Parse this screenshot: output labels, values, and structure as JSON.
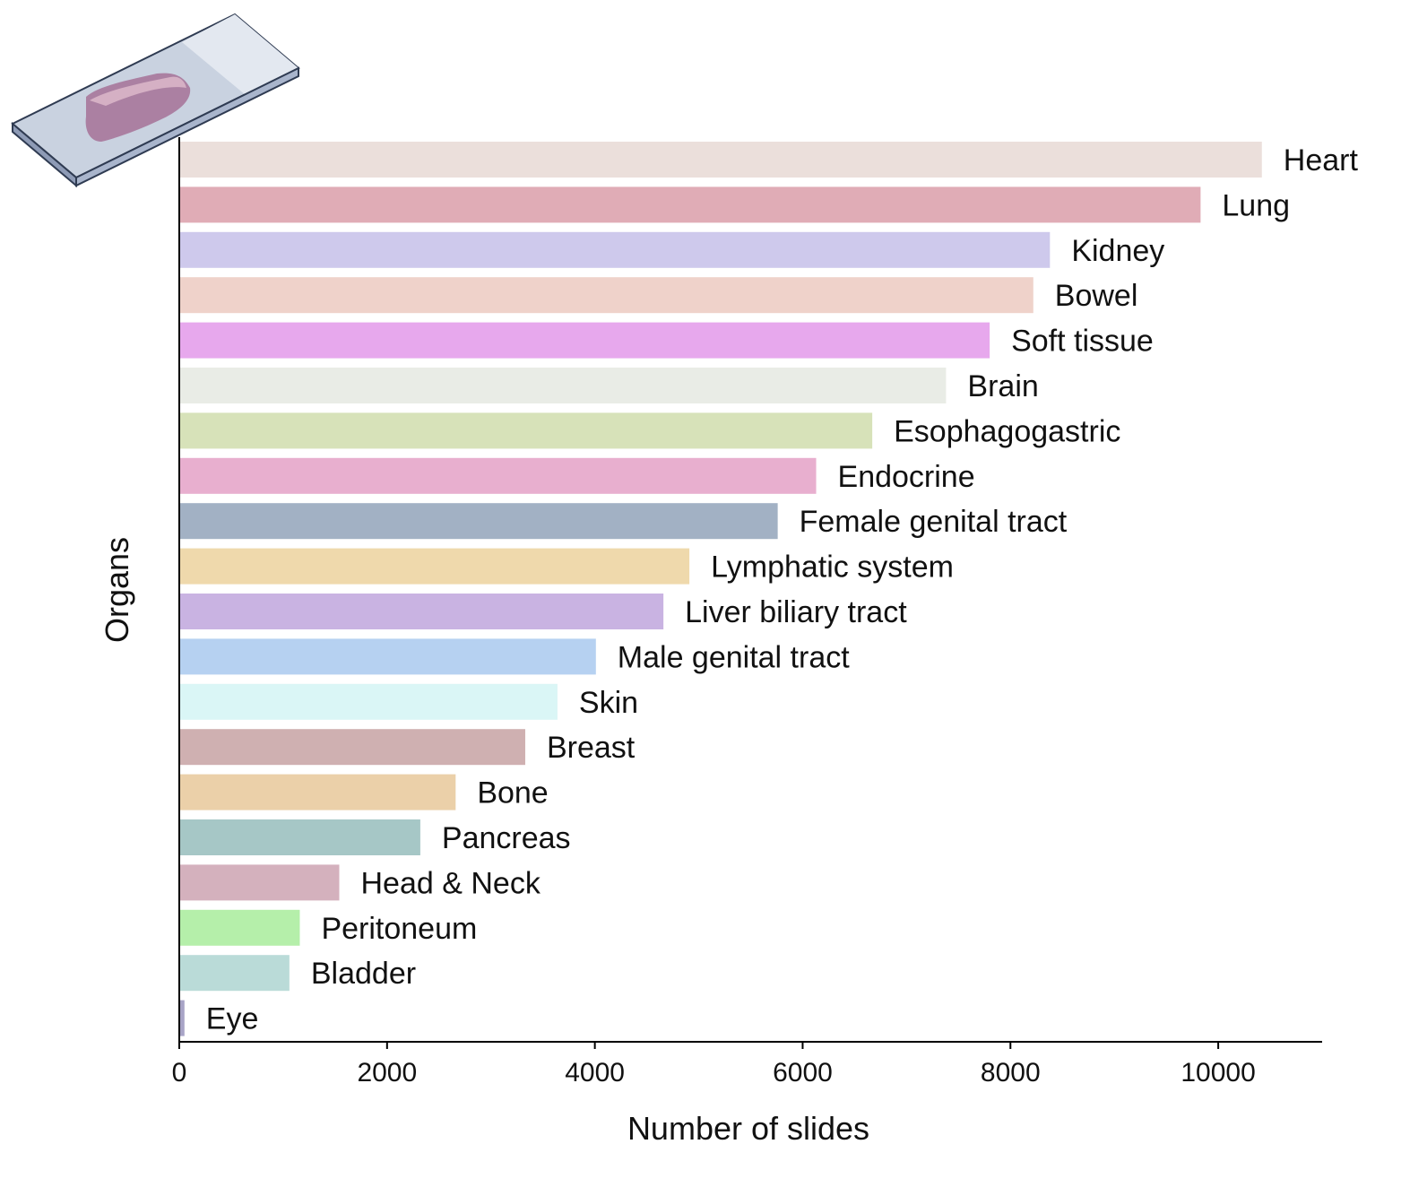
{
  "chart_data": {
    "type": "bar",
    "orientation": "horizontal",
    "xlabel": "Number of slides",
    "ylabel": "Organs",
    "xlim": [
      0,
      11000
    ],
    "xticks": [
      0,
      2000,
      4000,
      6000,
      8000,
      10000
    ],
    "grid": false,
    "legend": "none",
    "categories": [
      "Heart",
      "Lung",
      "Kidney",
      "Bowel",
      "Soft tissue",
      "Brain",
      "Esophagogastric",
      "Endocrine",
      "Female genital tract",
      "Lymphatic system",
      "Liver biliary tract",
      "Male genital tract",
      "Skin",
      "Breast",
      "Bone",
      "Pancreas",
      "Head & Neck",
      "Peritoneum",
      "Bladder",
      "Eye"
    ],
    "values": [
      10420,
      9830,
      8380,
      8220,
      7800,
      7380,
      6670,
      6130,
      5760,
      4910,
      4660,
      4010,
      3640,
      3330,
      2660,
      2320,
      1540,
      1160,
      1060,
      50
    ],
    "colors": [
      "#ebdfdb",
      "#e0acb6",
      "#cec9ec",
      "#efd2ca",
      "#e7a8ed",
      "#e9ece6",
      "#d7e2b9",
      "#e8afcf",
      "#a2b1c4",
      "#efd9ac",
      "#c9b3e2",
      "#b6d1f1",
      "#daf6f6",
      "#cfb0b1",
      "#ebd0a9",
      "#a6c7c6",
      "#d4b1bd",
      "#b5efaa",
      "#badbd8",
      "#a8a4c6"
    ]
  }
}
